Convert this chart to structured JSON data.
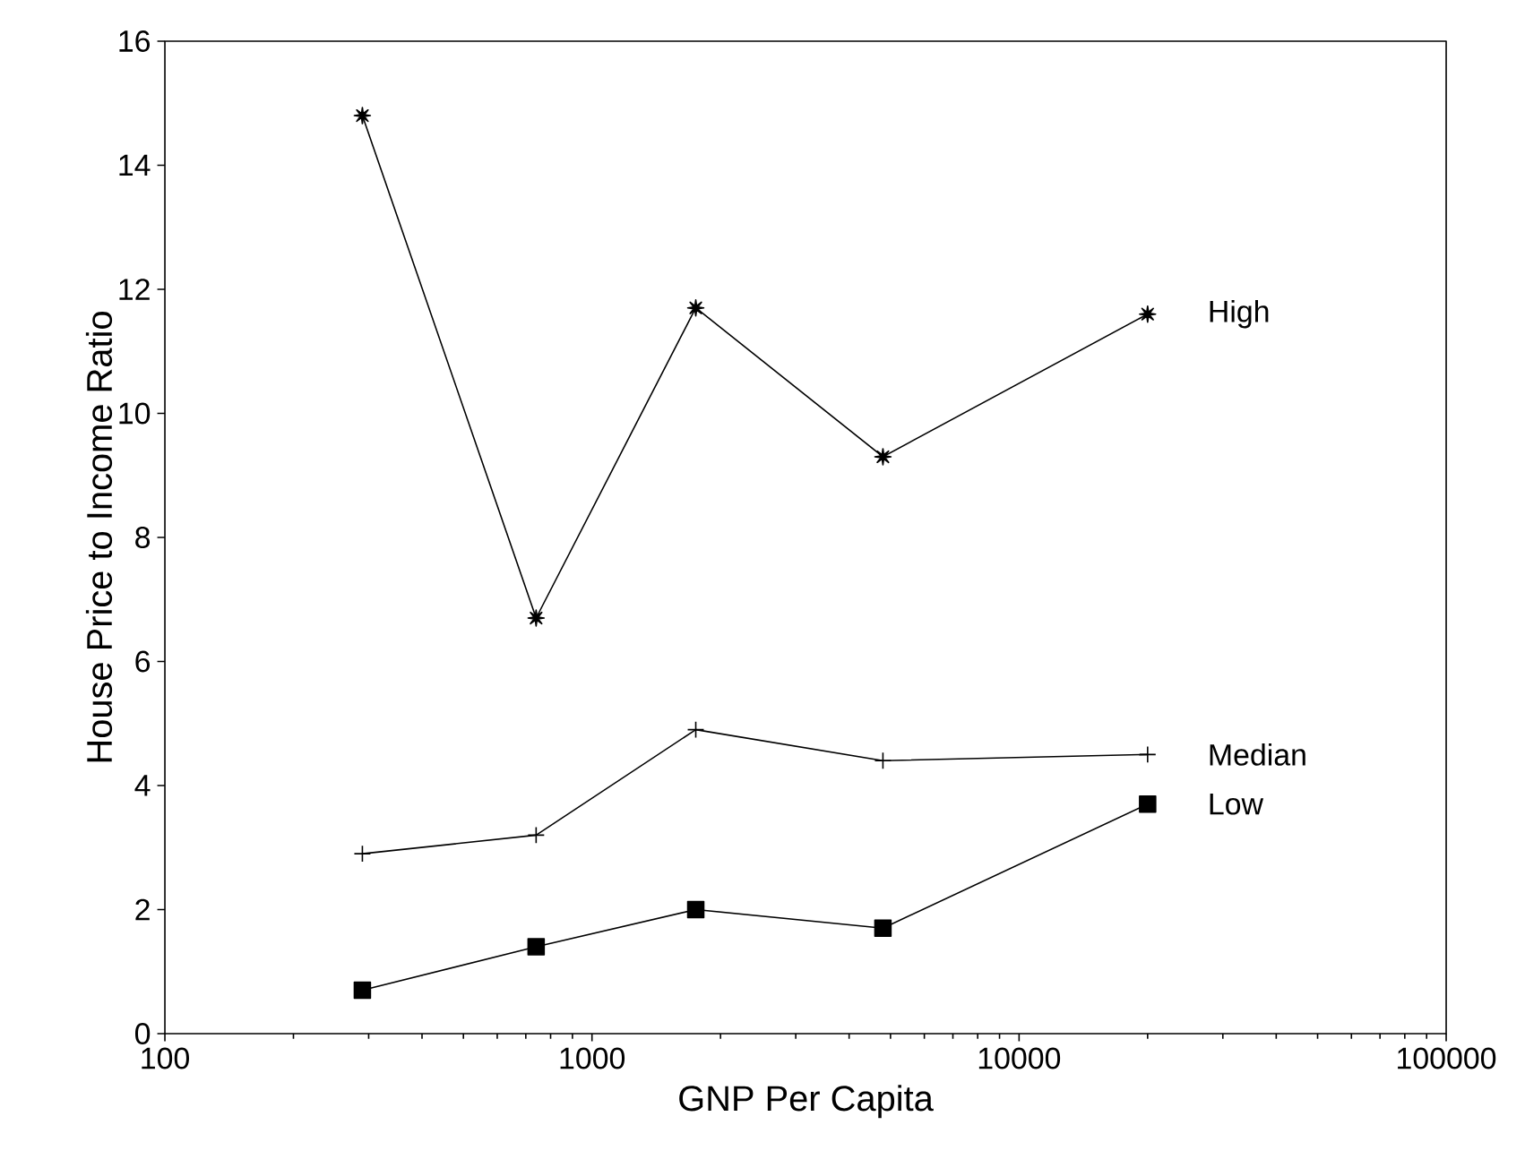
{
  "chart_data": {
    "type": "line",
    "xlabel": "GNP Per Capita",
    "ylabel": "House Price to Income Ratio",
    "x": [
      290,
      740,
      1750,
      4800,
      20000
    ],
    "series": [
      {
        "name": "High",
        "color": "#000000",
        "marker": "star",
        "values": [
          14.8,
          6.7,
          11.7,
          9.3,
          11.6
        ]
      },
      {
        "name": "Median",
        "color": "#000000",
        "marker": "cross",
        "values": [
          2.9,
          3.2,
          4.9,
          4.4,
          4.5
        ]
      },
      {
        "name": "Low",
        "color": "#000000",
        "marker": "square",
        "values": [
          0.7,
          1.4,
          2.0,
          1.7,
          3.7
        ]
      }
    ],
    "log": "x",
    "xlim": [
      100,
      100000
    ],
    "xticks": [
      100,
      1000,
      10000,
      100000
    ],
    "ylim": [
      0,
      16
    ],
    "yticks": [
      0,
      2,
      4,
      6,
      8,
      10,
      12,
      14,
      16
    ],
    "line_style": "solid"
  }
}
